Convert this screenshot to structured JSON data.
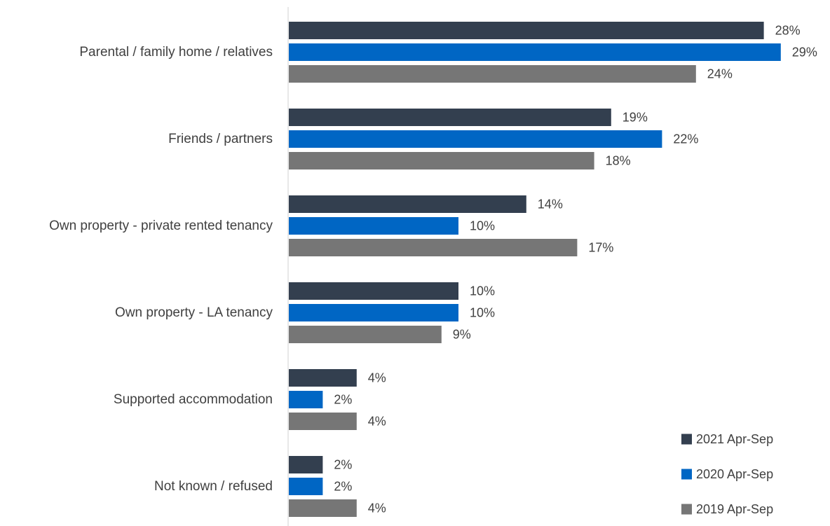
{
  "chart_data": {
    "type": "bar",
    "orientation": "horizontal",
    "title": "",
    "xlabel": "",
    "ylabel": "",
    "categories": [
      "Parental / family home / relatives",
      "Friends / partners",
      "Own property - private rented tenancy",
      "Own property - LA tenancy",
      "Supported accommodation",
      "Not known / refused"
    ],
    "series": [
      {
        "name": "2021 Apr-Sep",
        "color": "#333f4f",
        "values": [
          28,
          19,
          14,
          10,
          4,
          2
        ],
        "labels": [
          "28%",
          "19%",
          "14%",
          "10%",
          "4%",
          "2%"
        ]
      },
      {
        "name": "2020 Apr-Sep",
        "color": "#0066c4",
        "values": [
          29,
          22,
          10,
          10,
          2,
          2
        ],
        "labels": [
          "29%",
          "22%",
          "10%",
          "10%",
          "2%",
          "2%"
        ]
      },
      {
        "name": "2019 Apr-Sep",
        "color": "#767676",
        "values": [
          24,
          18,
          17,
          9,
          4,
          4
        ],
        "labels": [
          "24%",
          "18%",
          "17%",
          "9%",
          "4%",
          "4%"
        ]
      }
    ],
    "unit": "%",
    "xlim": [
      0,
      30
    ],
    "grid": false,
    "legend": {
      "position": "bottom-right"
    }
  }
}
